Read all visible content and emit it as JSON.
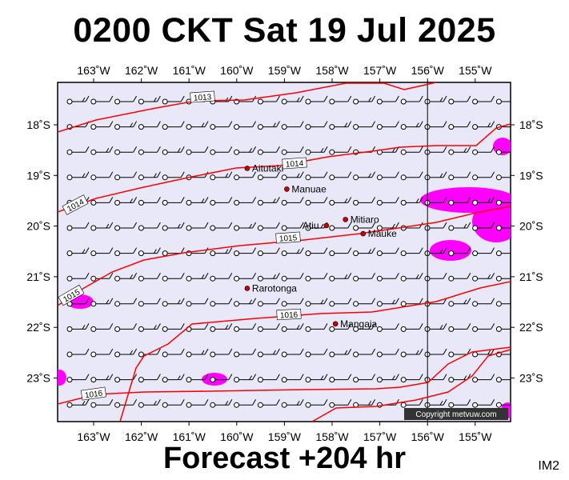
{
  "title": "0200 CKT Sat 19 Jul 2025",
  "footer": "Forecast +204 hr",
  "image_tag": "IM2",
  "copyright": "Copyright metvuw.com",
  "colors": {
    "ocean": "#e8e8f8",
    "isobar": "#ff0000",
    "rain": "#ff00ff",
    "island": "#cc0000"
  },
  "axes": {
    "lon_labels": [
      "163˚W",
      "162˚W",
      "161˚W",
      "160˚W",
      "159˚W",
      "158˚W",
      "157˚W",
      "156˚W",
      "155˚W"
    ],
    "lat_labels": [
      "18˚S",
      "19˚S",
      "20˚S",
      "21˚S",
      "22˚S",
      "23˚S"
    ]
  },
  "places": [
    {
      "name": "Aitutaki",
      "lon": -159.78,
      "lat": -18.86
    },
    {
      "name": "Manuae",
      "lon": -158.95,
      "lat": -19.27
    },
    {
      "name": "Mitiaro",
      "lon": -157.72,
      "lat": -19.87
    },
    {
      "name": "Atiu",
      "lon": -158.12,
      "lat": -19.99
    },
    {
      "name": "Mauke",
      "lon": -157.35,
      "lat": -20.15
    },
    {
      "name": "Rarotonga",
      "lon": -159.78,
      "lat": -21.23
    },
    {
      "name": "Mangaia",
      "lon": -157.93,
      "lat": -21.93
    }
  ],
  "isobars": [
    {
      "label": "1013"
    },
    {
      "label": "1014"
    },
    {
      "label": "1014"
    },
    {
      "label": "1015"
    },
    {
      "label": "1015"
    },
    {
      "label": "1016"
    },
    {
      "label": "1016"
    }
  ]
}
